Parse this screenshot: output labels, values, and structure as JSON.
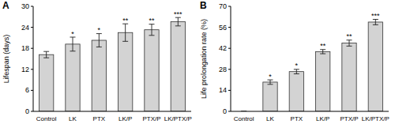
{
  "chart_data": [
    {
      "type": "bar",
      "title": "A",
      "y_label": "Lifespan (days)",
      "categories": [
        "Control",
        "LK",
        "PTX",
        "LK/P",
        "PTX/P",
        "LK/PTX/P"
      ],
      "values": [
        16.2,
        19.2,
        20.3,
        22.5,
        23.3,
        25.6
      ],
      "errors": [
        0.9,
        2.0,
        1.9,
        2.5,
        1.6,
        1.2
      ],
      "annotations": [
        null,
        "*",
        "*",
        "**",
        "**",
        "***"
      ],
      "color": "#d3d3d3",
      "ylim": [
        0,
        30
      ],
      "yticks": [
        0,
        6,
        12,
        18,
        24,
        30
      ],
      "grid": false
    },
    {
      "type": "bar",
      "title": "B",
      "y_label": "Life prolongation rate (%)",
      "categories": [
        "Control",
        "LK",
        "PTX",
        "LK/P",
        "PTX/P",
        "LK/PTX/P"
      ],
      "values": [
        0,
        19.5,
        26.5,
        39.8,
        45.5,
        59.5
      ],
      "errors": [
        0,
        1.5,
        1.5,
        1.4,
        2.0,
        1.8
      ],
      "annotations": [
        null,
        "*",
        "*",
        "**",
        "**",
        "***"
      ],
      "color": "#d3d3d3",
      "ylim": [
        0,
        70
      ],
      "yticks": [
        0,
        14,
        28,
        42,
        56,
        70
      ],
      "grid": false
    }
  ]
}
